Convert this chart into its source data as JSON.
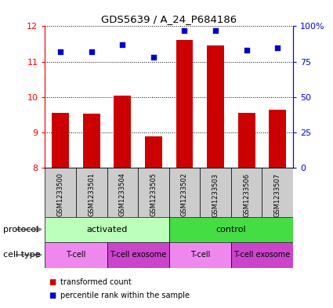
{
  "title": "GDS5639 / A_24_P684186",
  "samples": [
    "GSM1233500",
    "GSM1233501",
    "GSM1233504",
    "GSM1233505",
    "GSM1233502",
    "GSM1233503",
    "GSM1233506",
    "GSM1233507"
  ],
  "transformed_count": [
    9.55,
    9.52,
    10.05,
    8.88,
    11.6,
    11.45,
    9.55,
    9.65
  ],
  "percentile_rank": [
    82,
    82,
    87,
    78,
    97,
    97,
    83,
    85
  ],
  "ylim_left": [
    8,
    12
  ],
  "ylim_right": [
    0,
    100
  ],
  "yticks_left": [
    8,
    9,
    10,
    11,
    12
  ],
  "yticks_right": [
    0,
    25,
    50,
    75,
    100
  ],
  "ytick_labels_right": [
    "0",
    "25",
    "50",
    "75",
    "100%"
  ],
  "bar_color": "#cc0000",
  "dot_color": "#0000cc",
  "plot_bg": "#ffffff",
  "protocol_groups": [
    {
      "label": "activated",
      "start": 0,
      "end": 4,
      "color": "#bbffbb"
    },
    {
      "label": "control",
      "start": 4,
      "end": 8,
      "color": "#44dd44"
    }
  ],
  "cell_type_groups": [
    {
      "label": "T-cell",
      "start": 0,
      "end": 2,
      "color": "#ee88ee"
    },
    {
      "label": "T-cell exosome",
      "start": 2,
      "end": 4,
      "color": "#cc44cc"
    },
    {
      "label": "T-cell",
      "start": 4,
      "end": 6,
      "color": "#ee88ee"
    },
    {
      "label": "T-cell exosome",
      "start": 6,
      "end": 8,
      "color": "#cc44cc"
    }
  ],
  "sample_bg_color": "#cccccc",
  "legend_red_label": "transformed count",
  "legend_blue_label": "percentile rank within the sample",
  "protocol_label": "protocol",
  "cell_type_label": "cell type",
  "arrow_color": "#888888"
}
